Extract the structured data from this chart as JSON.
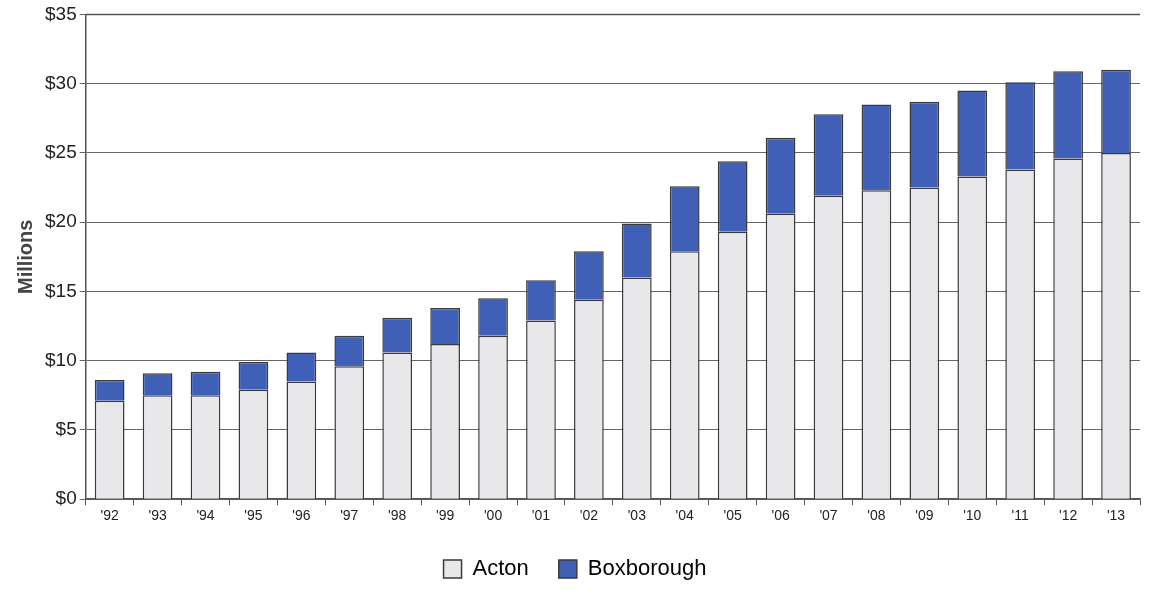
{
  "chart_data": {
    "type": "bar",
    "ylabel": "Millions",
    "stacked": true,
    "categories": [
      "'92",
      "'93",
      "'94",
      "'95",
      "'96",
      "'97",
      "'98",
      "'99",
      "'00",
      "'01",
      "'02",
      "'03",
      "'04",
      "'05",
      "'06",
      "'07",
      "'08",
      "'09",
      "'10",
      "'11",
      "'12",
      "'13"
    ],
    "series": [
      {
        "name": "Acton",
        "color": "#e8e8ea",
        "values": [
          7.1,
          7.5,
          7.5,
          7.9,
          8.5,
          9.6,
          10.6,
          11.2,
          11.8,
          12.9,
          14.4,
          16.0,
          17.9,
          19.3,
          20.6,
          21.9,
          22.3,
          22.5,
          23.3,
          23.8,
          24.6,
          25.0
        ]
      },
      {
        "name": "Boxborough",
        "color": "#4060b8",
        "values": [
          1.5,
          1.6,
          1.7,
          2.0,
          2.1,
          2.2,
          2.5,
          2.6,
          2.7,
          2.9,
          3.5,
          3.9,
          4.7,
          5.1,
          5.5,
          5.9,
          6.2,
          6.2,
          6.2,
          6.3,
          6.3,
          6.0
        ]
      }
    ],
    "ylim": [
      0,
      35
    ],
    "yticks": [
      {
        "value": 0,
        "label": "$0"
      },
      {
        "value": 5,
        "label": "$5"
      },
      {
        "value": 10,
        "label": "$10"
      },
      {
        "value": 15,
        "label": "$15"
      },
      {
        "value": 20,
        "label": "$20"
      },
      {
        "value": 25,
        "label": "$25"
      },
      {
        "value": 30,
        "label": "$30"
      },
      {
        "value": 35,
        "label": "$35"
      }
    ],
    "grid": "y",
    "legend": "bottom"
  }
}
